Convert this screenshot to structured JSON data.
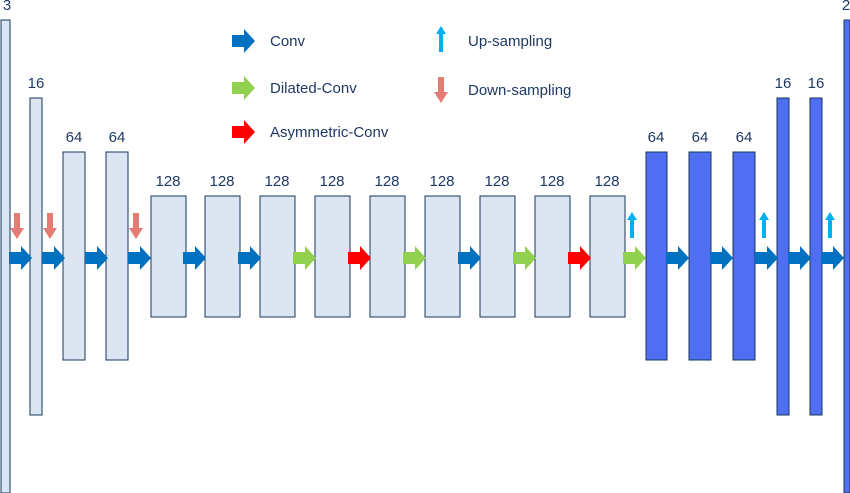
{
  "legend": [
    {
      "kind": "arrow-right",
      "color": "#0070c0",
      "label": "Conv"
    },
    {
      "kind": "arrow-right",
      "color": "#92d050",
      "label": "Dilated-Conv"
    },
    {
      "kind": "arrow-right",
      "color": "#ff0000",
      "label": "Asymmetric-Conv"
    },
    {
      "kind": "arrow-up",
      "color": "#00b0f0",
      "label": "Up-sampling"
    },
    {
      "kind": "arrow-down",
      "color": "#e47c73",
      "label": "Down-sampling"
    }
  ],
  "layers": [
    {
      "channels": "3",
      "style": "encoder"
    },
    {
      "channels": "16",
      "style": "encoder"
    },
    {
      "channels": "64",
      "style": "encoder"
    },
    {
      "channels": "64",
      "style": "encoder"
    },
    {
      "channels": "128",
      "style": "encoder"
    },
    {
      "channels": "128",
      "style": "encoder"
    },
    {
      "channels": "128",
      "style": "encoder"
    },
    {
      "channels": "128",
      "style": "encoder"
    },
    {
      "channels": "128",
      "style": "encoder"
    },
    {
      "channels": "128",
      "style": "encoder"
    },
    {
      "channels": "128",
      "style": "encoder"
    },
    {
      "channels": "128",
      "style": "encoder"
    },
    {
      "channels": "128",
      "style": "encoder"
    },
    {
      "channels": "64",
      "style": "decoder"
    },
    {
      "channels": "64",
      "style": "decoder"
    },
    {
      "channels": "64",
      "style": "decoder"
    },
    {
      "channels": "16",
      "style": "decoder"
    },
    {
      "channels": "16",
      "style": "decoder"
    },
    {
      "channels": "2",
      "style": "decoder"
    }
  ],
  "arrows": [
    {
      "type": "Conv",
      "sample": "Down-sampling"
    },
    {
      "type": "Conv",
      "sample": "Down-sampling"
    },
    {
      "type": "Conv",
      "sample": ""
    },
    {
      "type": "Conv",
      "sample": "Down-sampling"
    },
    {
      "type": "Conv",
      "sample": ""
    },
    {
      "type": "Conv",
      "sample": ""
    },
    {
      "type": "Dilated-Conv",
      "sample": ""
    },
    {
      "type": "Asymmetric-Conv",
      "sample": ""
    },
    {
      "type": "Dilated-Conv",
      "sample": ""
    },
    {
      "type": "Conv",
      "sample": ""
    },
    {
      "type": "Dilated-Conv",
      "sample": ""
    },
    {
      "type": "Asymmetric-Conv",
      "sample": ""
    },
    {
      "type": "Dilated-Conv",
      "sample": "Up-sampling"
    },
    {
      "type": "Conv",
      "sample": ""
    },
    {
      "type": "Conv",
      "sample": ""
    },
    {
      "type": "Conv",
      "sample": "Up-sampling"
    },
    {
      "type": "Conv",
      "sample": ""
    },
    {
      "type": "Conv",
      "sample": "Up-sampling"
    }
  ],
  "colors": {
    "encoder_fill": "#dce6f2",
    "decoder_fill": "#4f6ef2",
    "border": "#17375e",
    "label": "#1f3864"
  }
}
